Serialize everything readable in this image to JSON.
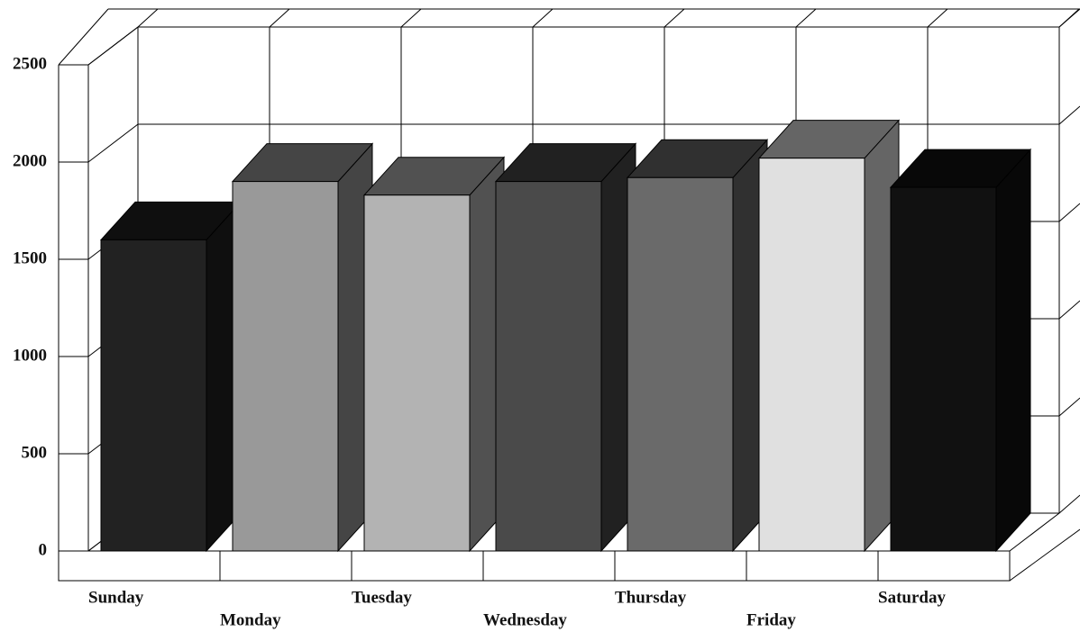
{
  "chart_data": {
    "type": "bar3d",
    "categories": [
      "Sunday",
      "Monday",
      "Tuesday",
      "Wednesday",
      "Thursday",
      "Friday",
      "Saturday"
    ],
    "values": [
      1600,
      1900,
      1830,
      1900,
      1920,
      2020,
      1870
    ],
    "colors": [
      "#222222",
      "#999999",
      "#b3b3b3",
      "#4a4a4a",
      "#6a6a6a",
      "#e0e0e0",
      "#111111"
    ],
    "ylim": [
      0,
      2500
    ],
    "yticks": [
      0,
      500,
      1000,
      1500,
      2000,
      2500
    ],
    "grid": true
  }
}
